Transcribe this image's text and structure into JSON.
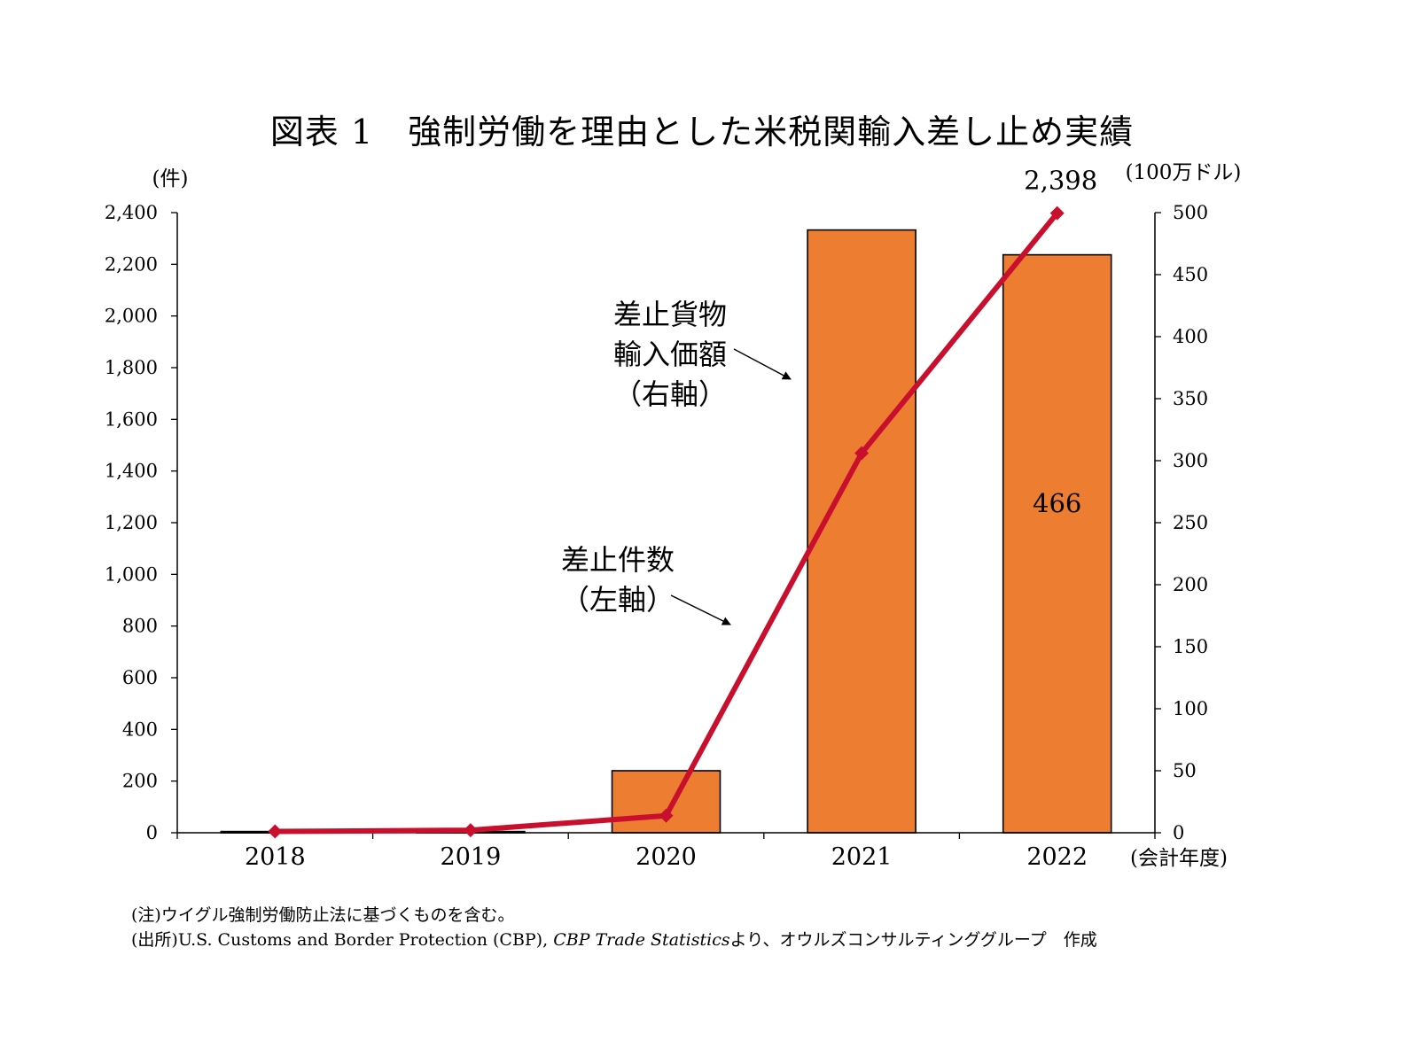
{
  "title": "図表 1　強制労働を理由とした米税関輸入差し止め実績",
  "notes": {
    "note": "(注)ウイグル強制労働防止法に基づくものを含む。",
    "source_prefix": "(出所)U.S. Customs and Border Protection (CBP), ",
    "source_italic": "CBP Trade Statistics",
    "source_suffix": "より、オウルズコンサルティンググループ　作成"
  },
  "chart_data": {
    "type": "bar",
    "categories": [
      "2018",
      "2019",
      "2020",
      "2021",
      "2022"
    ],
    "series": [
      {
        "name": "差止貨物輸入価額（右軸）",
        "type": "bar",
        "axis": "right",
        "values": [
          1,
          1,
          50,
          486,
          466
        ],
        "color": "#ED7D31"
      },
      {
        "name": "差止件数（左軸）",
        "type": "line",
        "axis": "left",
        "values": [
          5,
          10,
          66,
          1469,
          2398
        ],
        "color": "#C8102E"
      }
    ],
    "left_axis": {
      "label": "(件)",
      "ylim": [
        0,
        2400
      ],
      "ticks": [
        0,
        200,
        400,
        600,
        800,
        1000,
        1200,
        1400,
        1600,
        1800,
        2000,
        2200,
        2400
      ],
      "tick_labels": [
        "0",
        "200",
        "400",
        "600",
        "800",
        "1,000",
        "1,200",
        "1,400",
        "1,600",
        "1,800",
        "2,000",
        "2,200",
        "2,400"
      ]
    },
    "right_axis": {
      "label": "(100万ドル)",
      "ylim": [
        0,
        500
      ],
      "ticks": [
        0,
        50,
        100,
        150,
        200,
        250,
        300,
        350,
        400,
        450,
        500
      ],
      "tick_labels": [
        "0",
        "50",
        "100",
        "150",
        "200",
        "250",
        "300",
        "350",
        "400",
        "450",
        "500"
      ]
    },
    "xlabel": "(会計年度)",
    "data_labels": [
      {
        "series": 1,
        "index": 4,
        "text": "2,398"
      },
      {
        "series": 0,
        "index": 4,
        "text": "466"
      }
    ],
    "annotations": {
      "bar_lines": [
        "差止貨物",
        "輸入価額",
        "（右軸）"
      ],
      "line_lines": [
        "差止件数",
        "（左軸）"
      ]
    },
    "grid": false
  }
}
